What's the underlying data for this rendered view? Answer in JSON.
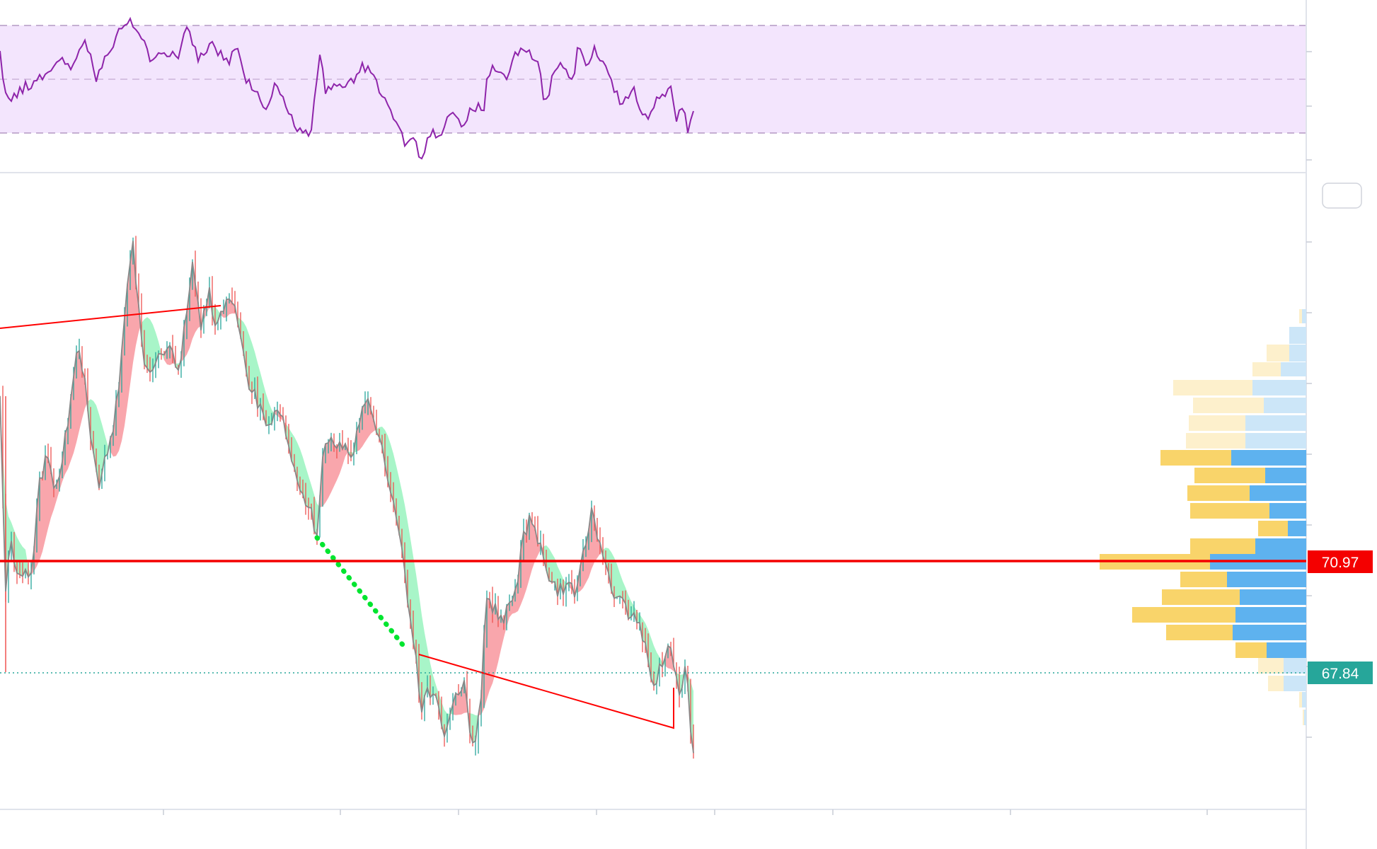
{
  "colors": {
    "rsi_line": "#8e24aa",
    "rsi_band": "#f3e5fd",
    "up_fill": "#a8f5c8",
    "down_fill": "#f9a6ac",
    "candle_up": "#26a69a",
    "candle_down": "#ef5350",
    "resistance": "#ff0000",
    "last_price": "#26a69a",
    "poc_line": "#f40000",
    "vp_buy": "#5eb2ef",
    "vp_sell": "#f9d46a",
    "vp_buy_light": "#cce6f8",
    "vp_sell_light": "#fdf0cc"
  },
  "price_labels": {
    "resistance": "70.97",
    "last_price": "67.84"
  },
  "chart_data": {
    "type": "line",
    "panels": [
      "rsi",
      "price"
    ],
    "rsi_levels": [
      70,
      50,
      30
    ],
    "price_axis_ticks_visible": false,
    "marked_prices": {
      "horizontal_resistance": 70.97,
      "last_price": 67.84
    },
    "volume_profile": {
      "rows": 24,
      "poc_price": 70.97
    }
  }
}
